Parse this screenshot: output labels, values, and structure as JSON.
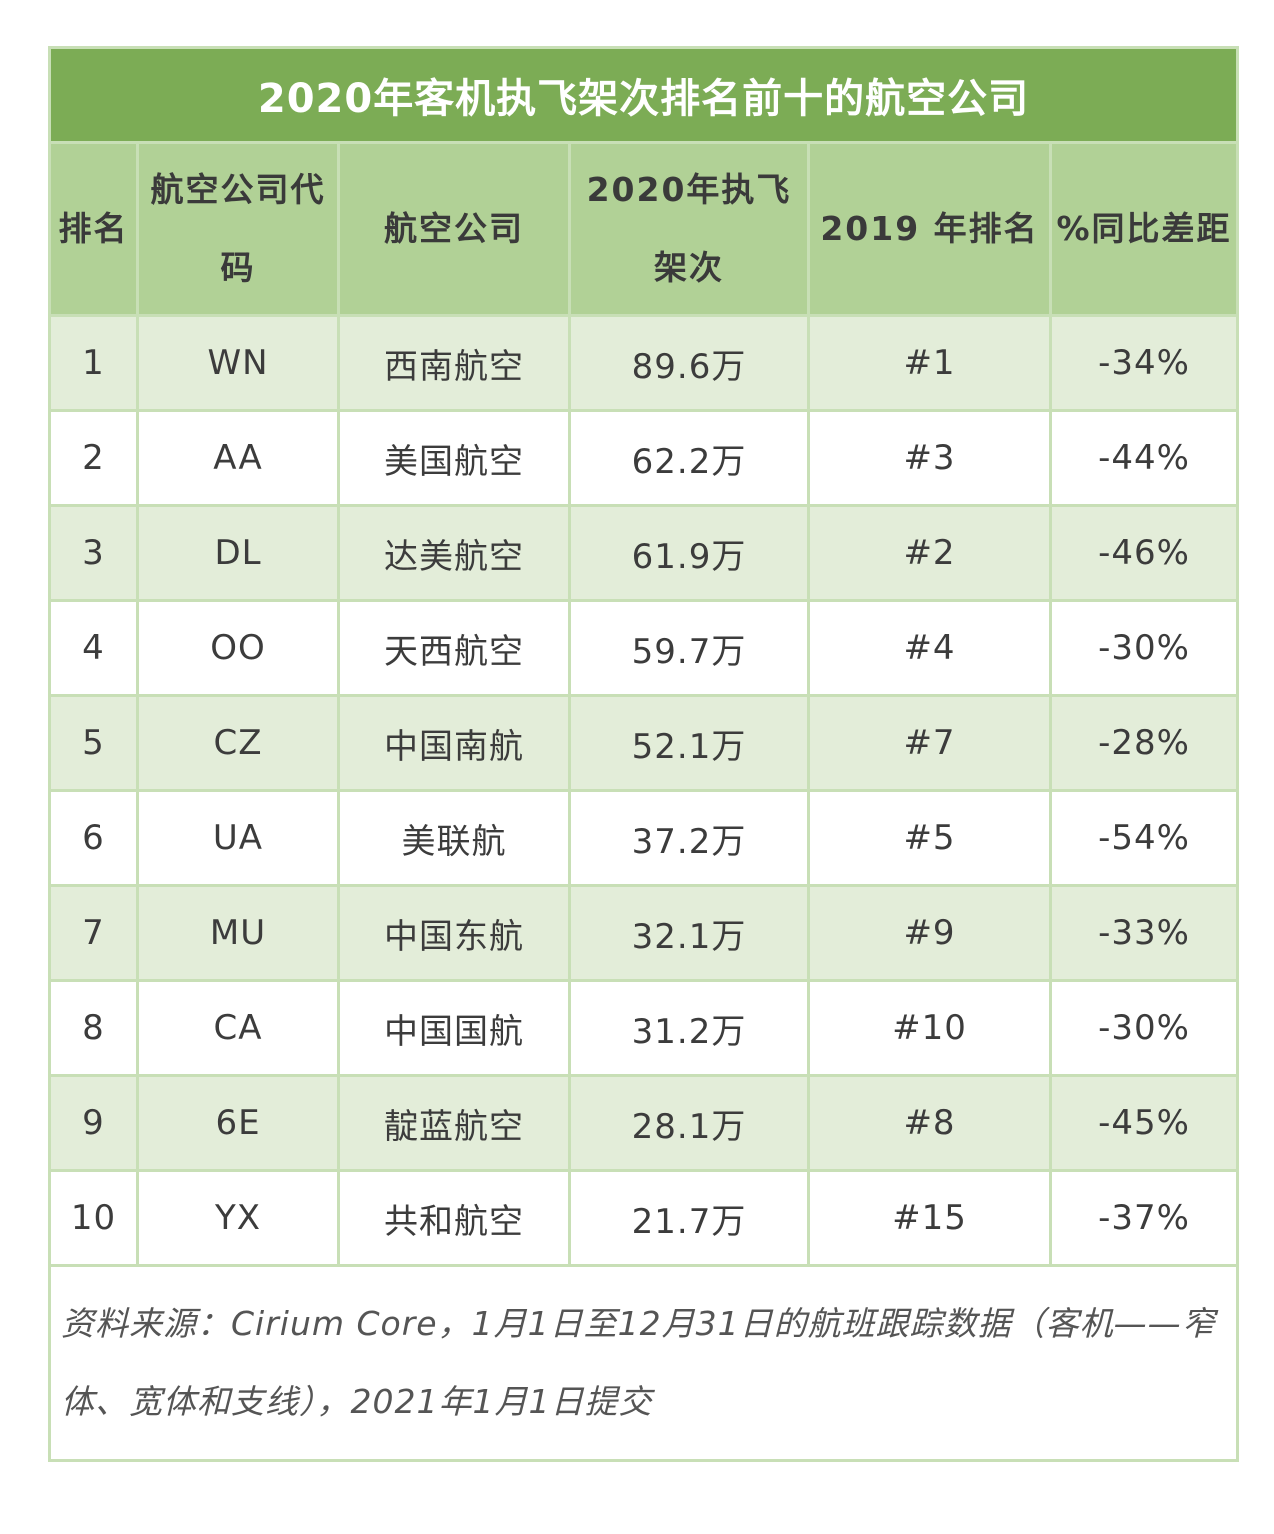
{
  "title": "2020年客机执飞架次排名前十的航空公司",
  "headers": {
    "rank": "排名",
    "code": "航空公司代码",
    "airline": "航空公司",
    "flights_2020": "2020年执飞架次",
    "rank_2019": "2019 年排名",
    "yoy": "%同比差距"
  },
  "rows": [
    {
      "rank": "1",
      "code": "WN",
      "airline": "西南航空",
      "flights": "89.6万",
      "rank2019": "#1",
      "yoy": "-34%"
    },
    {
      "rank": "2",
      "code": "AA",
      "airline": "美国航空",
      "flights": "62.2万",
      "rank2019": "#3",
      "yoy": "-44%"
    },
    {
      "rank": "3",
      "code": "DL",
      "airline": "达美航空",
      "flights": "61.9万",
      "rank2019": "#2",
      "yoy": "-46%"
    },
    {
      "rank": "4",
      "code": "OO",
      "airline": "天西航空",
      "flights": "59.7万",
      "rank2019": "#4",
      "yoy": "-30%"
    },
    {
      "rank": "5",
      "code": "CZ",
      "airline": "中国南航",
      "flights": "52.1万",
      "rank2019": "#7",
      "yoy": "-28%"
    },
    {
      "rank": "6",
      "code": "UA",
      "airline": "美联航",
      "flights": "37.2万",
      "rank2019": "#5",
      "yoy": "-54%"
    },
    {
      "rank": "7",
      "code": "MU",
      "airline": "中国东航",
      "flights": "32.1万",
      "rank2019": "#9",
      "yoy": "-33%"
    },
    {
      "rank": "8",
      "code": "CA",
      "airline": "中国国航",
      "flights": "31.2万",
      "rank2019": "#10",
      "yoy": "-30%"
    },
    {
      "rank": "9",
      "code": "6E",
      "airline": "靛蓝航空",
      "flights": "28.1万",
      "rank2019": "#8",
      "yoy": "-45%"
    },
    {
      "rank": "10",
      "code": "YX",
      "airline": "共和航空",
      "flights": "21.7万",
      "rank2019": "#15",
      "yoy": "-37%"
    }
  ],
  "source_note": "资料来源：Cirium Core，1月1日至12月31日的航班跟踪数据（客机——窄体、宽体和支线），2021年1月1日提交",
  "colors": {
    "title_bg": "#7cac55",
    "header_bg": "#b1d196",
    "shaded_row_bg": "#e3edd9",
    "border": "#c8dfb6"
  }
}
